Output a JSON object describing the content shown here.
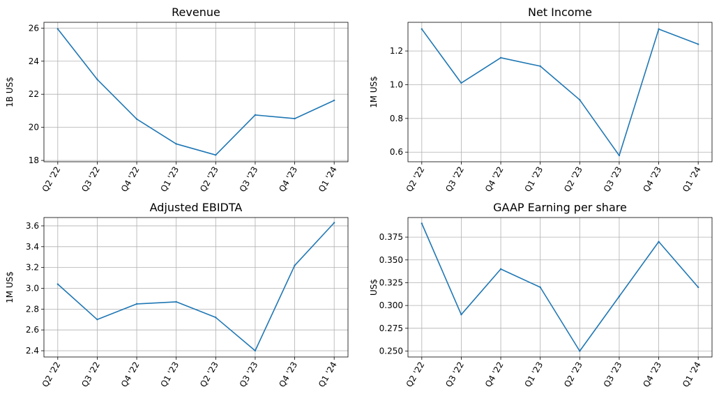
{
  "colors": {
    "series": "#1f77b4",
    "grid": "#b0b0b0"
  },
  "chart_data": [
    {
      "type": "line",
      "title": "Revenue",
      "xlabel": "",
      "ylabel": "1B US$",
      "categories": [
        "Q2 '22",
        "Q3 '22",
        "Q4 '22",
        "Q1 '23",
        "Q2 '23",
        "Q3 '23",
        "Q4 '23",
        "Q1 '24"
      ],
      "values": [
        25.95,
        22.9,
        20.5,
        19.0,
        18.33,
        20.75,
        20.53,
        21.63
      ],
      "ylim": [
        17.92,
        26.35
      ],
      "yticks": [
        18,
        20,
        22,
        24,
        26
      ],
      "ytick_labels": [
        "18",
        "20",
        "22",
        "24",
        "26"
      ],
      "grid": true
    },
    {
      "type": "line",
      "title": "Net Income",
      "xlabel": "",
      "ylabel": "1M US$",
      "categories": [
        "Q2 '22",
        "Q3 '22",
        "Q4 '22",
        "Q1 '23",
        "Q2 '23",
        "Q3 '23",
        "Q4 '23",
        "Q1 '24"
      ],
      "values": [
        1.33,
        1.01,
        1.16,
        1.11,
        0.91,
        0.58,
        1.33,
        1.24
      ],
      "ylim": [
        0.543,
        1.37
      ],
      "yticks": [
        0.6,
        0.8,
        1.0,
        1.2
      ],
      "ytick_labels": [
        "0.6",
        "0.8",
        "1.0",
        "1.2"
      ],
      "grid": true
    },
    {
      "type": "line",
      "title": "Adjusted EBIDTA",
      "xlabel": "",
      "ylabel": "1M US$",
      "categories": [
        "Q2 '22",
        "Q3 '22",
        "Q4 '22",
        "Q1 '23",
        "Q2 '23",
        "Q3 '23",
        "Q4 '23",
        "Q1 '24"
      ],
      "values": [
        3.04,
        2.7,
        2.85,
        2.87,
        2.72,
        2.4,
        3.22,
        3.63
      ],
      "ylim": [
        2.34,
        3.68
      ],
      "yticks": [
        2.4,
        2.6,
        2.8,
        3.0,
        3.2,
        3.4,
        3.6
      ],
      "ytick_labels": [
        "2.4",
        "2.6",
        "2.8",
        "3.0",
        "3.2",
        "3.4",
        "3.6"
      ],
      "grid": true
    },
    {
      "type": "line",
      "title": "GAAP Earning per share",
      "xlabel": "",
      "ylabel": "US$",
      "categories": [
        "Q2 '22",
        "Q3 '22",
        "Q4 '22",
        "Q1 '23",
        "Q2 '23",
        "Q3 '23",
        "Q4 '23",
        "Q1 '24"
      ],
      "values": [
        0.39,
        0.29,
        0.34,
        0.32,
        0.25,
        0.31,
        0.37,
        0.32
      ],
      "ylim": [
        0.2435,
        0.3965
      ],
      "yticks": [
        0.25,
        0.275,
        0.3,
        0.325,
        0.35,
        0.375
      ],
      "ytick_labels": [
        "0.250",
        "0.275",
        "0.300",
        "0.325",
        "0.350",
        "0.375"
      ],
      "grid": true
    }
  ]
}
